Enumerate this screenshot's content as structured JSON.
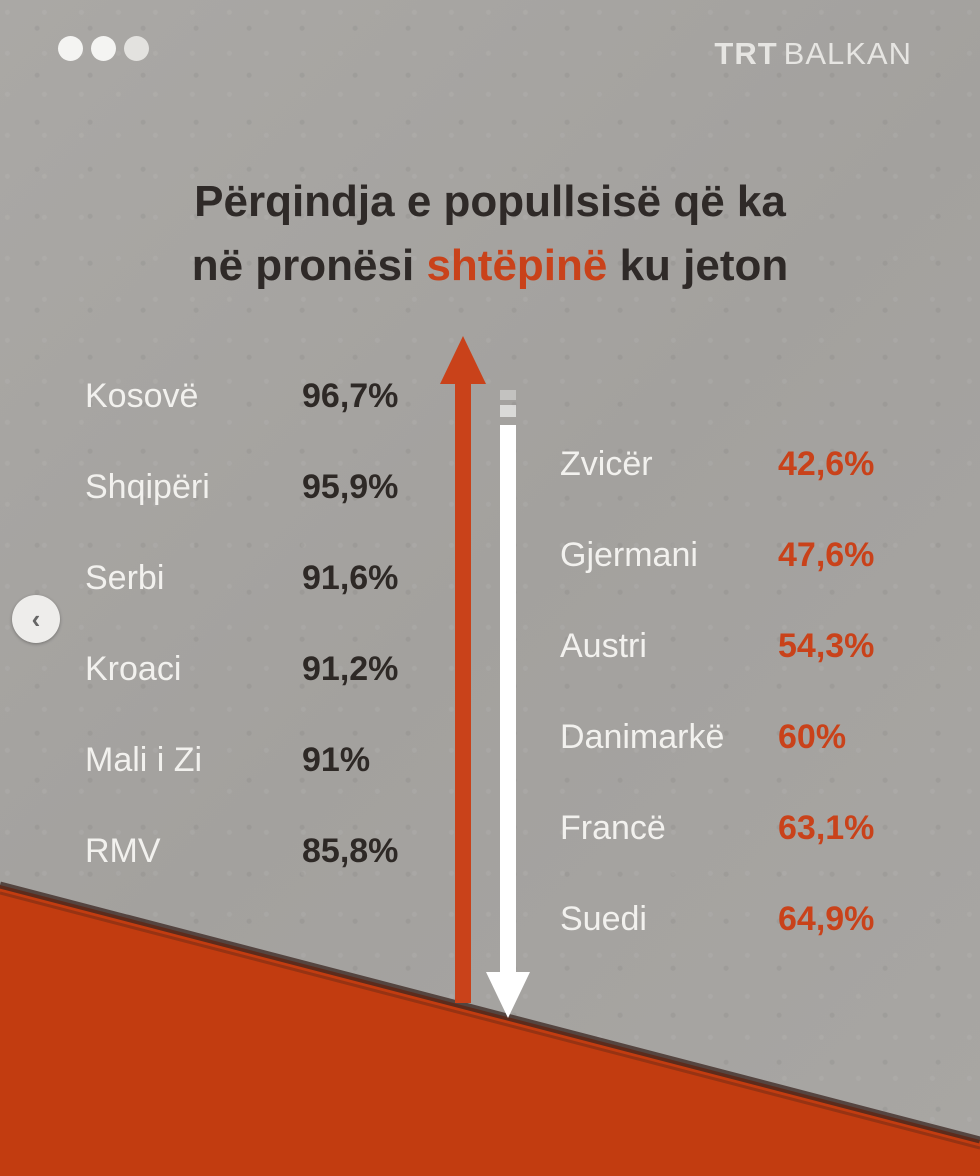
{
  "brand": {
    "part1": "TRT",
    "part2": "BALKAN"
  },
  "title": {
    "line1": "Përqindja e popullsisë që ka",
    "line2_pre": "në pronësi ",
    "line2_highlight": "shtëpinë",
    "line2_post": " ku jeton"
  },
  "colors": {
    "accent": "#c9421a",
    "dark_text": "#2e2926",
    "light_text": "#f2f1ee",
    "background": "#a6a4a1"
  },
  "icons": {
    "carousel_prev": "chevron-left-icon",
    "arrow_up": "arrow-up-icon",
    "arrow_down": "arrow-down-icon"
  },
  "carousel": {
    "prev_glyph": "‹"
  },
  "left_list": [
    {
      "country": "Kosovë",
      "value": "96,7%"
    },
    {
      "country": "Shqipëri",
      "value": "95,9%"
    },
    {
      "country": "Serbi",
      "value": "91,6%"
    },
    {
      "country": "Kroaci",
      "value": "91,2%"
    },
    {
      "country": "Mali i Zi",
      "value": "91%"
    },
    {
      "country": "RMV",
      "value": "85,8%"
    }
  ],
  "right_list": [
    {
      "country": "Zvicër",
      "value": "42,6%"
    },
    {
      "country": "Gjermani",
      "value": "47,6%"
    },
    {
      "country": "Austri",
      "value": "54,3%"
    },
    {
      "country": "Danimarkë",
      "value": "60%"
    },
    {
      "country": "Francë",
      "value": "63,1%"
    },
    {
      "country": "Suedi",
      "value": "64,9%"
    }
  ]
}
